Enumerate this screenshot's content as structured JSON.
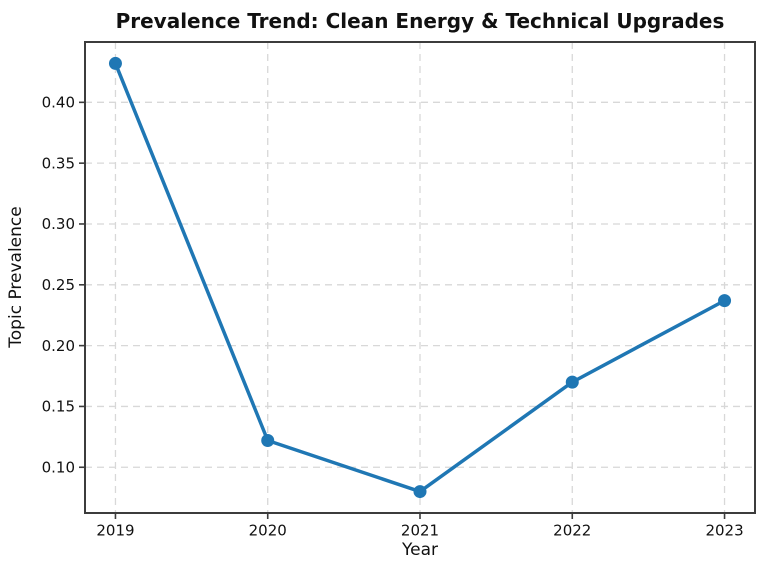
{
  "chart_data": {
    "type": "line",
    "title": "Prevalence Trend: Clean Energy & Technical Upgrades",
    "xlabel": "Year",
    "ylabel": "Topic Prevalence",
    "categories": [
      2019,
      2020,
      2021,
      2022,
      2023
    ],
    "series": [
      {
        "name": "Topic Prevalence",
        "values": [
          0.432,
          0.122,
          0.08,
          0.17,
          0.237
        ]
      }
    ],
    "yticks": [
      0.1,
      0.15,
      0.2,
      0.25,
      0.3,
      0.35,
      0.4
    ],
    "ytick_labels": [
      "0.10",
      "0.15",
      "0.20",
      "0.25",
      "0.30",
      "0.35",
      "0.40"
    ],
    "ylim": [
      0.0624,
      0.4496
    ],
    "xlim": [
      2018.8,
      2023.2
    ],
    "grid": "dashed-both-axes",
    "legend_position": "none",
    "colors": {
      "line": "#1f77b4",
      "marker": "#1f77b4",
      "grid": "#d8d8d8",
      "spine": "#3c3c3c",
      "text": "#111111",
      "background": "#ffffff"
    }
  }
}
